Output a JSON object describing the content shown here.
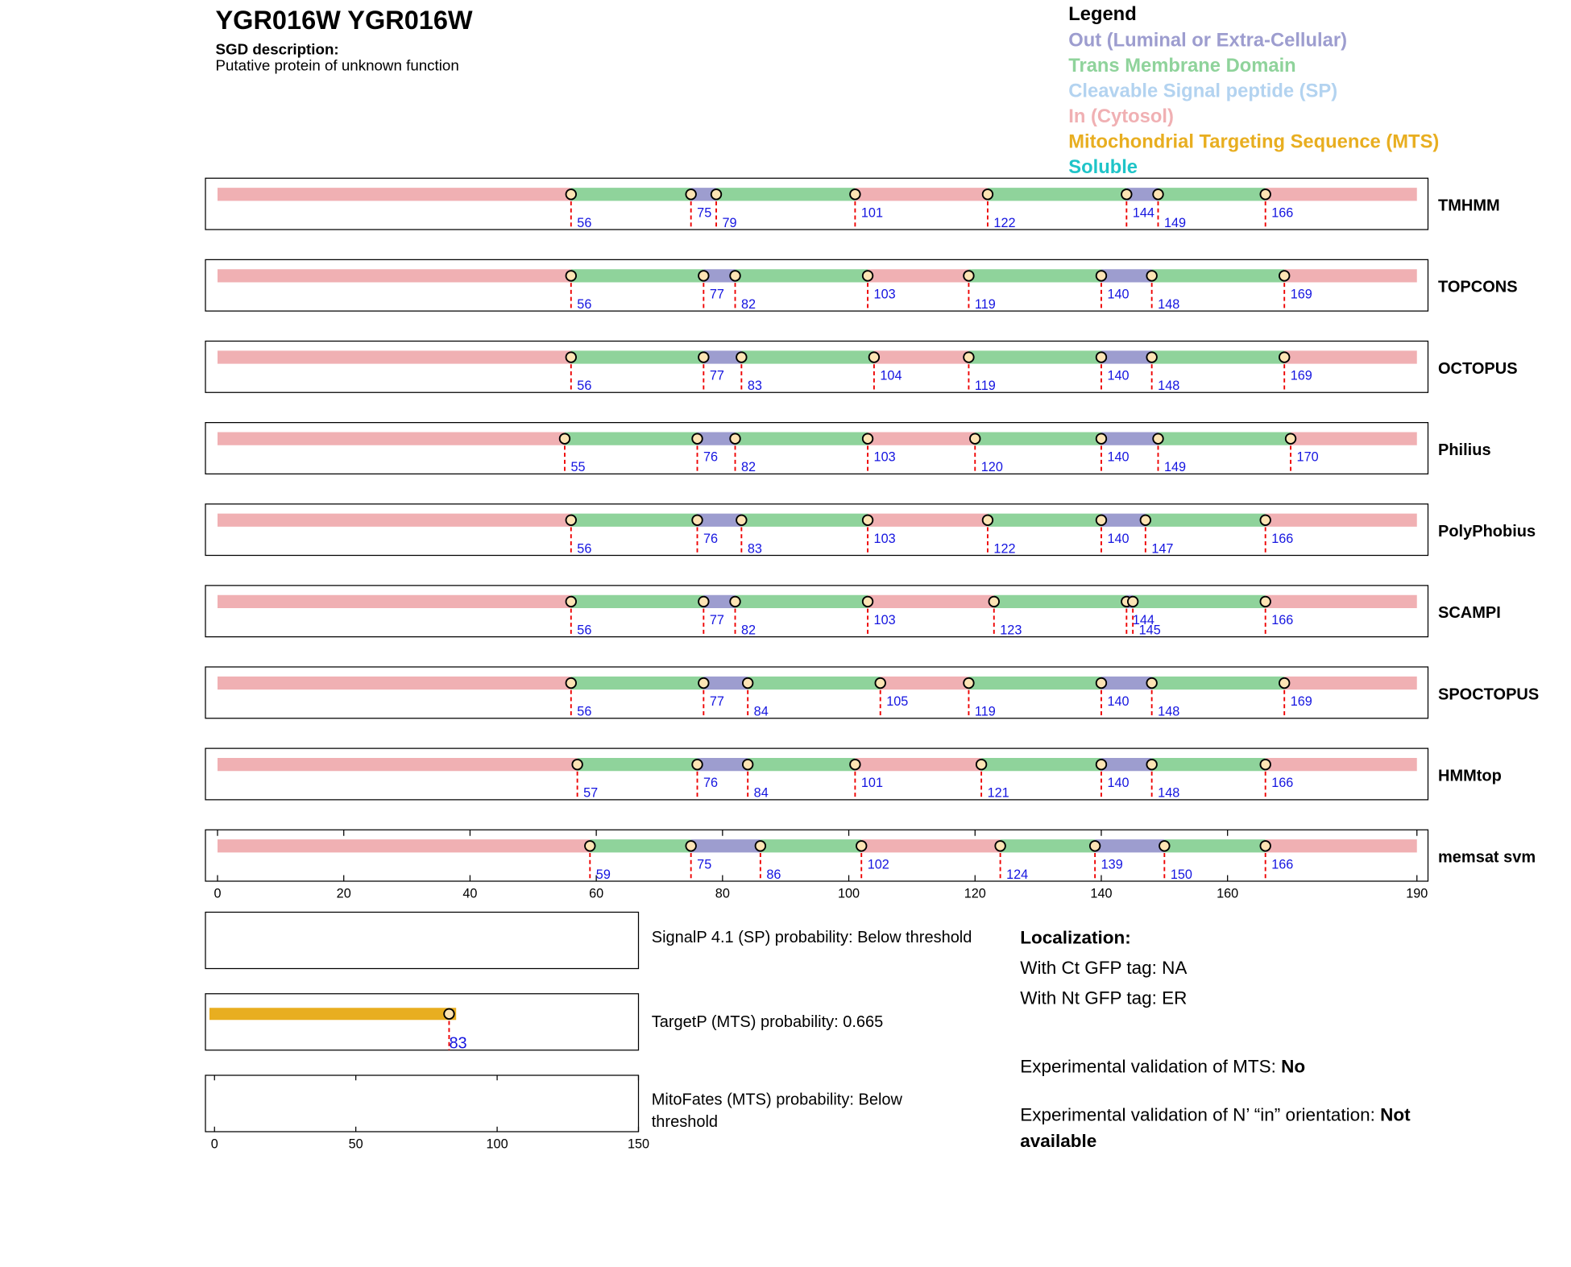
{
  "title": "YGR016W  YGR016W",
  "description_label": "SGD description:",
  "description": "Putative protein of unknown function",
  "legend": {
    "title": "Legend",
    "entries": [
      {
        "label": "Out (Luminal or Extra-Cellular)",
        "color": "#9d9dcf"
      },
      {
        "label": "Trans Membrane Domain",
        "color": "#8fd39b"
      },
      {
        "label": "Cleavable Signal peptide (SP)",
        "color": "#b3d3f0"
      },
      {
        "label": "In (Cytosol)",
        "color": "#f0b0b3"
      },
      {
        "label": "Mitochondrial Targeting Sequence (MTS)",
        "color": "#e8ae20"
      },
      {
        "label": "Soluble",
        "color": "#1fc4c8"
      }
    ]
  },
  "chart_data": [
    {
      "type": "topology",
      "xlim": [
        0,
        190
      ],
      "xticks": [
        0,
        20,
        40,
        60,
        80,
        100,
        120,
        140,
        160,
        190
      ],
      "tracks": [
        {
          "name": "TMHMM",
          "boundaries": [
            56,
            75,
            79,
            101,
            122,
            144,
            149,
            166
          ]
        },
        {
          "name": "TOPCONS",
          "boundaries": [
            56,
            77,
            82,
            103,
            119,
            140,
            148,
            169
          ]
        },
        {
          "name": "OCTOPUS",
          "boundaries": [
            56,
            77,
            83,
            104,
            119,
            140,
            148,
            169
          ]
        },
        {
          "name": "Philius",
          "boundaries": [
            55,
            76,
            82,
            103,
            120,
            140,
            149,
            170
          ]
        },
        {
          "name": "PolyPhobius",
          "boundaries": [
            56,
            76,
            83,
            103,
            122,
            140,
            147,
            166
          ]
        },
        {
          "name": "SCAMPI",
          "boundaries": [
            56,
            77,
            82,
            103,
            123,
            144,
            145,
            166
          ]
        },
        {
          "name": "SPOCTOPUS",
          "boundaries": [
            56,
            77,
            84,
            105,
            119,
            140,
            148,
            169
          ]
        },
        {
          "name": "HMMtop",
          "boundaries": [
            57,
            76,
            84,
            101,
            121,
            140,
            148,
            166
          ]
        },
        {
          "name": "memsat svm",
          "boundaries": [
            59,
            75,
            86,
            102,
            124,
            139,
            150,
            166
          ]
        }
      ]
    },
    {
      "type": "bar",
      "xlim": [
        0,
        150
      ],
      "xticks": [
        0,
        50,
        100,
        150
      ],
      "rows": [
        {
          "label": "SignalP 4.1 (SP) probability: Below threshold"
        },
        {
          "label": "TargetP (MTS) probability: 0.665",
          "values": [
            83
          ]
        },
        {
          "label": "MitoFates (MTS) probability: Below threshold"
        }
      ]
    }
  ],
  "localization": {
    "title": "Localization:",
    "ct": "With Ct GFP tag: NA",
    "nt": "With Nt GFP tag: ER"
  },
  "validation": [
    {
      "label": "Experimental validation of MTS:",
      "value": "No"
    },
    {
      "label": "Experimental validation of N’ “in” orientation:",
      "value": "Not available"
    }
  ]
}
